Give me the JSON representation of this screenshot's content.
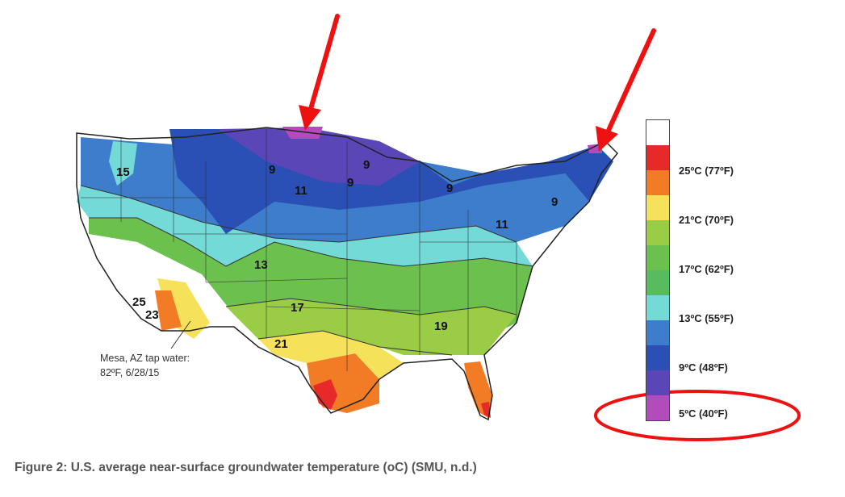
{
  "legend": {
    "entries": [
      {
        "color": "#ffffff",
        "label": ""
      },
      {
        "color": "#e8292a",
        "label": ""
      },
      {
        "color": "#f17c25",
        "label": "25ºC (77ºF)"
      },
      {
        "color": "#f6e15b",
        "label": ""
      },
      {
        "color": "#9bcc45",
        "label": "21ºC (70ºF)"
      },
      {
        "color": "#6cc14e",
        "label": ""
      },
      {
        "color": "#59bb5f",
        "label": "17ºC (62ºF)"
      },
      {
        "color": "#73dad8",
        "label": ""
      },
      {
        "color": "#3d7dcb",
        "label": "13ºC (55ºF)"
      },
      {
        "color": "#2a50b5",
        "label": ""
      },
      {
        "color": "#5a46b7",
        "label": "9ºC (48ºF)"
      },
      {
        "color": "#b44bbd",
        "label": "5ºC (40ºF)"
      }
    ]
  },
  "annotation": {
    "line1": "Mesa, AZ tap water:",
    "line2": "82ºF, 6/28/15"
  },
  "contour_labels": [
    "9",
    "9",
    "9",
    "9",
    "9",
    "11",
    "11",
    "13",
    "15",
    "17",
    "19",
    "21",
    "23",
    "25"
  ],
  "caption": "Figure 2: U.S. average near-surface groundwater temperature (oC) (SMU, n.d.)",
  "colors": {
    "highlight_red": "#ee1111"
  }
}
